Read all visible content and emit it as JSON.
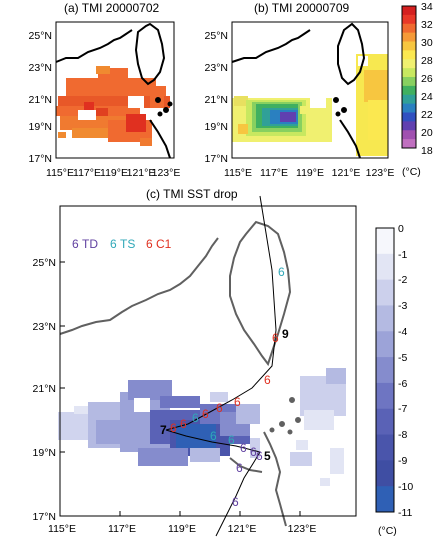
{
  "panel_a": {
    "title": "(a) TMI 20000702"
  },
  "panel_b": {
    "title": "(b) TMI 20000709"
  },
  "panel_c": {
    "title": "(c) TMI SST drop"
  },
  "top": {
    "lat_labels": [
      "25°N",
      "23°N",
      "21°N",
      "19°N",
      "17°N"
    ],
    "lon_labels": [
      "115°E",
      "117°E",
      "119°E",
      "121°E",
      "123°E"
    ]
  },
  "bottom": {
    "lat_labels": [
      "25°N",
      "23°N",
      "21°N",
      "19°N",
      "17°N"
    ],
    "lon_labels": [
      "115°E",
      "117°E",
      "119°E",
      "121°E",
      "123°E"
    ]
  },
  "legend": {
    "td": {
      "symbol": "6",
      "label": "TD",
      "color": "#6040a0"
    },
    "ts": {
      "symbol": "6",
      "label": "TS",
      "color": "#30a8b8"
    },
    "c1": {
      "symbol": "6",
      "label": "C1",
      "color": "#e03020"
    }
  },
  "markers": {
    "day7": "7",
    "day9": "9",
    "day5": "5"
  },
  "colorbar_top": {
    "ticks": [
      "34",
      "32",
      "30",
      "28",
      "26",
      "24",
      "22",
      "20",
      "18"
    ],
    "unit": "(°C)",
    "colors": [
      "#d42020",
      "#e83828",
      "#f06a30",
      "#f59a38",
      "#f7c640",
      "#fbe850",
      "#f0f070",
      "#c8e860",
      "#88d060",
      "#40b060",
      "#30a098",
      "#2a80c0",
      "#3050c0",
      "#6040b0",
      "#a050b0",
      "#c070c0"
    ]
  },
  "colorbar_bottom": {
    "ticks": [
      "0",
      "-1",
      "-2",
      "-3",
      "-4",
      "-5",
      "-6",
      "-7",
      "-8",
      "-9",
      "-10",
      "-11"
    ],
    "unit": "(°C)",
    "colors": [
      "#f6f7fc",
      "#e2e5f4",
      "#ccd0ec",
      "#b4bae2",
      "#9ca3d8",
      "#858ccd",
      "#6e75c2",
      "#5a62b6",
      "#4a55ab",
      "#3f4ea3",
      "#2f60b5"
    ]
  }
}
